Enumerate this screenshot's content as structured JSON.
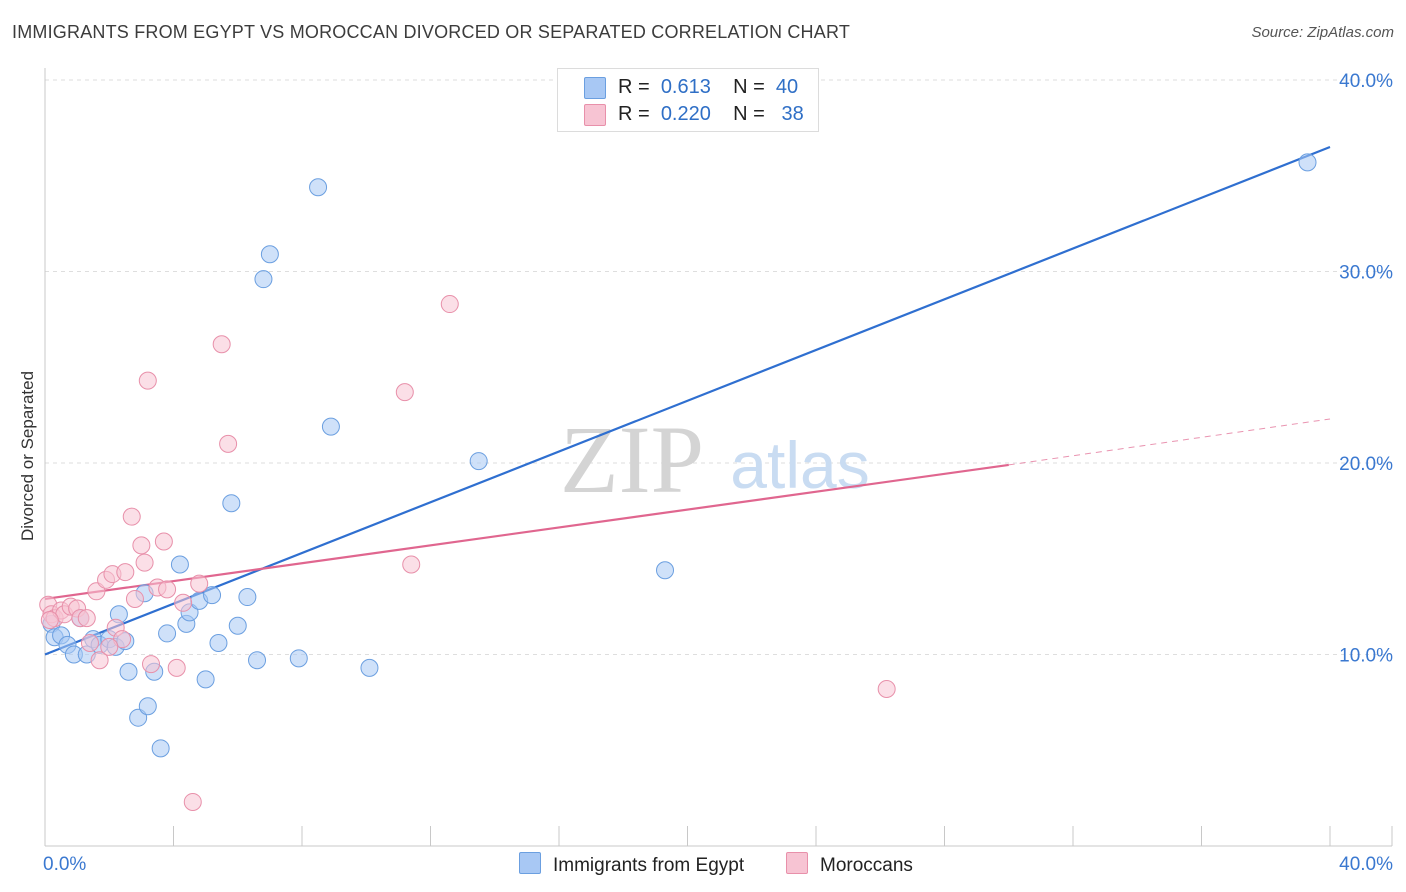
{
  "title": "IMMIGRANTS FROM EGYPT VS MOROCCAN DIVORCED OR SEPARATED CORRELATION CHART",
  "source": "Source: ZipAtlas.com",
  "watermark": {
    "zip": "ZIP",
    "atlas": "atlas"
  },
  "legend": {
    "rows": [
      {
        "r_label": "R =",
        "r_value": "0.613",
        "n_label": "N =",
        "n_value": "40",
        "color": "#a8c8f4",
        "border": "#6b9fe0"
      },
      {
        "r_label": "R =",
        "r_value": "0.220",
        "n_label": "N =",
        "n_value": "38",
        "color": "#f7c4d3",
        "border": "#e890aa"
      }
    ]
  },
  "bottom_legend": [
    {
      "label": "Immigrants from Egypt",
      "color": "#a8c8f4",
      "border": "#6b9fe0"
    },
    {
      "label": "Moroccans",
      "color": "#f7c4d3",
      "border": "#e890aa"
    }
  ],
  "chart_data": {
    "type": "scatter",
    "ylabel": "Divorced or Separated",
    "xlim": [
      0,
      40
    ],
    "ylim": [
      0,
      40
    ],
    "x_tick_labels": [
      {
        "value": 0,
        "label": "0.0%"
      },
      {
        "value": 40,
        "label": "40.0%"
      }
    ],
    "y_tick_labels": [
      {
        "value": 10,
        "label": "10.0%"
      },
      {
        "value": 20,
        "label": "20.0%"
      },
      {
        "value": 30,
        "label": "30.0%"
      },
      {
        "value": 40,
        "label": "40.0%"
      }
    ],
    "grid": true,
    "series": [
      {
        "name": "Immigrants from Egypt",
        "color": "#a8c8f4",
        "edge": "#6b9fe0",
        "line_color": "#2f6fd0",
        "points": [
          [
            0.2,
            11.6
          ],
          [
            0.3,
            10.9
          ],
          [
            0.5,
            11.0
          ],
          [
            0.7,
            10.5
          ],
          [
            0.9,
            10.0
          ],
          [
            1.1,
            11.9
          ],
          [
            1.3,
            10.0
          ],
          [
            1.5,
            10.8
          ],
          [
            1.7,
            10.5
          ],
          [
            2.0,
            10.8
          ],
          [
            2.2,
            10.4
          ],
          [
            2.3,
            12.1
          ],
          [
            2.5,
            10.7
          ],
          [
            2.6,
            9.1
          ],
          [
            2.9,
            6.7
          ],
          [
            3.1,
            13.2
          ],
          [
            3.2,
            7.3
          ],
          [
            3.4,
            9.1
          ],
          [
            3.6,
            5.1
          ],
          [
            3.8,
            11.1
          ],
          [
            4.2,
            14.7
          ],
          [
            4.4,
            11.6
          ],
          [
            4.5,
            12.2
          ],
          [
            4.8,
            12.8
          ],
          [
            5.0,
            8.7
          ],
          [
            5.2,
            13.1
          ],
          [
            5.4,
            10.6
          ],
          [
            5.8,
            17.9
          ],
          [
            6.0,
            11.5
          ],
          [
            6.3,
            13.0
          ],
          [
            6.6,
            9.7
          ],
          [
            6.8,
            29.6
          ],
          [
            7.0,
            30.9
          ],
          [
            7.9,
            9.8
          ],
          [
            8.5,
            34.4
          ],
          [
            8.9,
            21.9
          ],
          [
            10.1,
            9.3
          ],
          [
            13.5,
            20.1
          ],
          [
            19.3,
            14.4
          ],
          [
            39.3,
            35.7
          ]
        ],
        "trend": {
          "x": [
            0,
            40
          ],
          "y": [
            10.0,
            36.5
          ]
        }
      },
      {
        "name": "Moroccans",
        "color": "#f7c4d3",
        "edge": "#e890aa",
        "line_color": "#e0668f",
        "points": [
          [
            0.1,
            12.6
          ],
          [
            0.2,
            12.1
          ],
          [
            0.3,
            11.9
          ],
          [
            0.5,
            12.3
          ],
          [
            0.6,
            12.1
          ],
          [
            0.8,
            12.5
          ],
          [
            1.0,
            12.4
          ],
          [
            1.1,
            11.9
          ],
          [
            1.3,
            11.9
          ],
          [
            1.4,
            10.6
          ],
          [
            1.6,
            13.3
          ],
          [
            1.7,
            9.7
          ],
          [
            1.9,
            13.9
          ],
          [
            2.1,
            14.2
          ],
          [
            2.2,
            11.4
          ],
          [
            2.4,
            10.8
          ],
          [
            2.5,
            14.3
          ],
          [
            2.7,
            17.2
          ],
          [
            2.8,
            12.9
          ],
          [
            3.0,
            15.7
          ],
          [
            3.1,
            14.8
          ],
          [
            3.2,
            24.3
          ],
          [
            3.3,
            9.5
          ],
          [
            3.5,
            13.5
          ],
          [
            3.7,
            15.9
          ],
          [
            3.8,
            13.4
          ],
          [
            4.1,
            9.3
          ],
          [
            4.3,
            12.7
          ],
          [
            4.6,
            2.3
          ],
          [
            4.8,
            13.7
          ],
          [
            5.5,
            26.2
          ],
          [
            5.7,
            21.0
          ],
          [
            11.2,
            23.7
          ],
          [
            11.4,
            14.7
          ],
          [
            12.6,
            28.3
          ],
          [
            26.2,
            8.2
          ],
          [
            0.15,
            11.8
          ],
          [
            2.0,
            10.4
          ]
        ],
        "trend": {
          "x": [
            0,
            30
          ],
          "y": [
            12.9,
            19.9
          ]
        },
        "trend_dashed": {
          "x": [
            30,
            40
          ],
          "y": [
            19.9,
            22.3
          ]
        }
      }
    ]
  }
}
